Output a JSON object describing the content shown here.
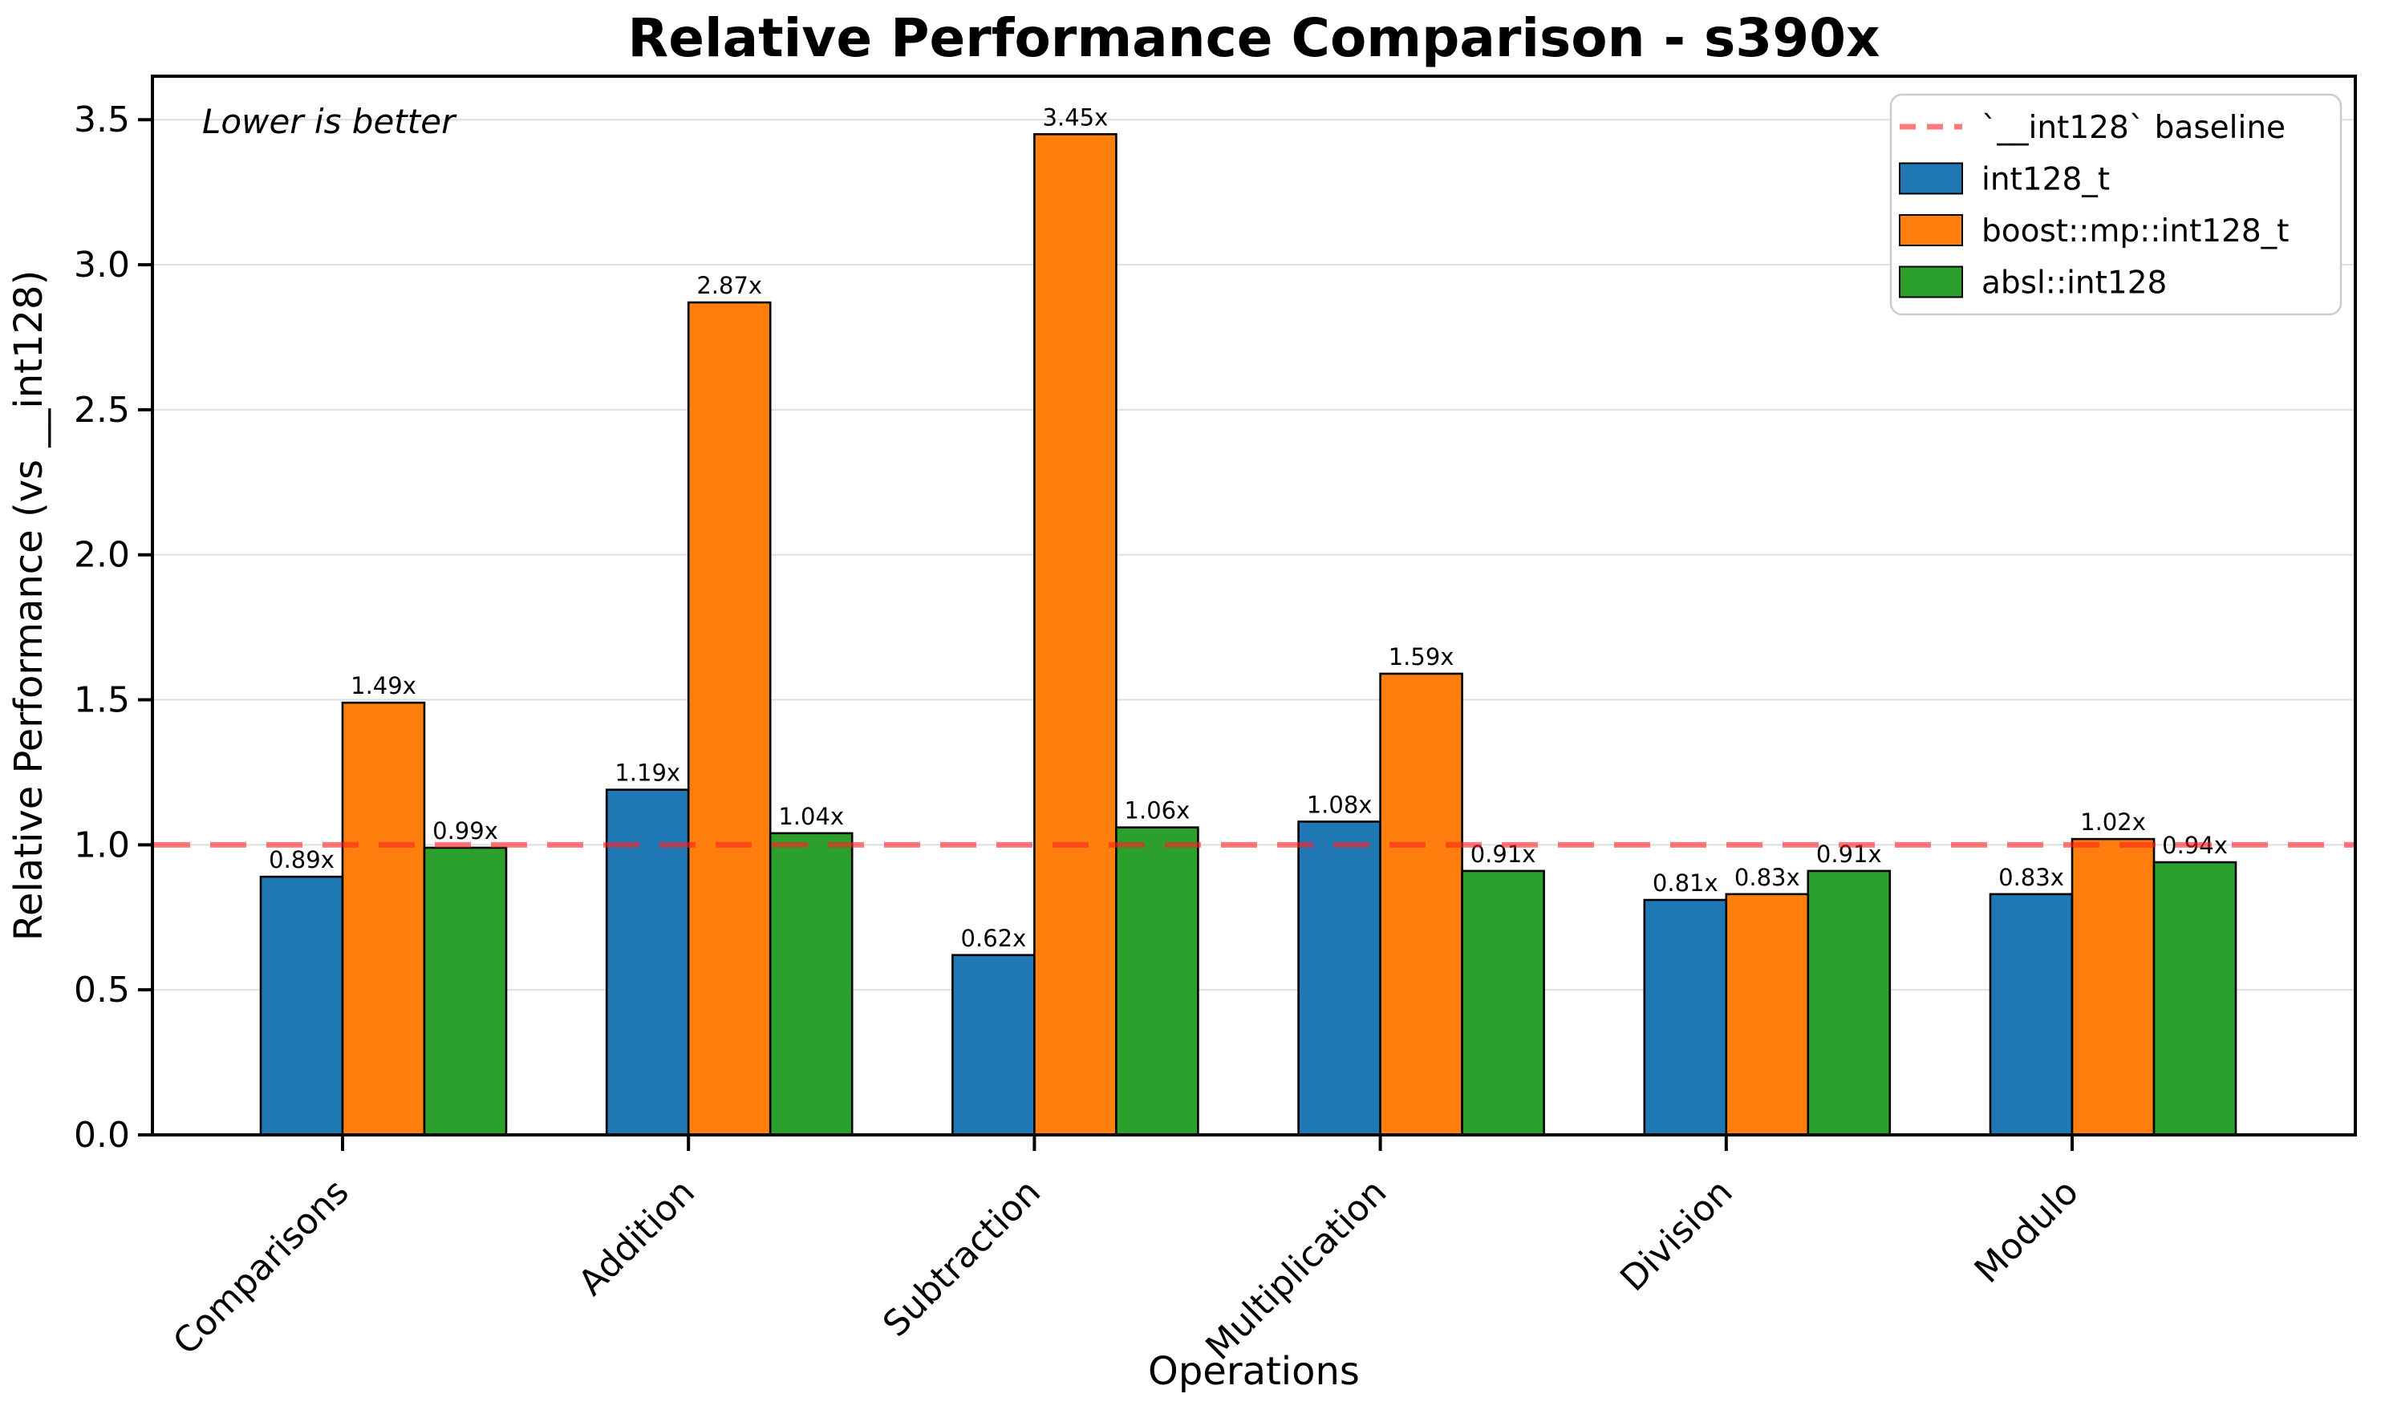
{
  "figure": {
    "title": "Relative Performance Comparison - s390x",
    "xlabel": "Operations",
    "ylabel": "Relative Performance (vs __int128)",
    "annotation": "Lower is better"
  },
  "legend": {
    "position": "upper right",
    "entries": [
      "`__int128` baseline",
      "int128_t",
      "boost::mp::int128_t",
      "absl::int128"
    ]
  },
  "colors": {
    "int128_t": "#1f77b4",
    "boost_mp_int128_t": "#ff7f0e",
    "absl_int128": "#2ca02c",
    "baseline": "#ff2222",
    "grid": "#e0e0e0",
    "axis": "#000000",
    "legend_border": "#cccccc"
  },
  "chart_data": {
    "type": "bar",
    "title": "Relative Performance Comparison - s390x",
    "xlabel": "Operations",
    "ylabel": "Relative Performance (vs __int128)",
    "annotation": "Lower is better",
    "categories": [
      "Comparisons",
      "Addition",
      "Subtraction",
      "Multiplication",
      "Division",
      "Modulo"
    ],
    "series": [
      {
        "name": "int128_t",
        "color": "#1f77b4",
        "values": [
          0.89,
          1.19,
          0.62,
          1.08,
          0.81,
          0.83
        ]
      },
      {
        "name": "boost::mp::int128_t",
        "color": "#ff7f0e",
        "values": [
          1.49,
          2.87,
          3.45,
          1.59,
          0.83,
          1.02
        ]
      },
      {
        "name": "absl::int128",
        "color": "#2ca02c",
        "values": [
          0.99,
          1.04,
          1.06,
          0.91,
          0.91,
          0.94
        ]
      }
    ],
    "value_label_suffix": "x",
    "baseline": {
      "value": 1.0,
      "label": "`__int128` baseline",
      "color": "#ff2222",
      "style": "dashed"
    },
    "yticks": [
      0.0,
      0.5,
      1.0,
      1.5,
      2.0,
      2.5,
      3.0,
      3.5
    ],
    "ylim": [
      0,
      3.65
    ],
    "grid": true,
    "legend_position": "upper right"
  }
}
